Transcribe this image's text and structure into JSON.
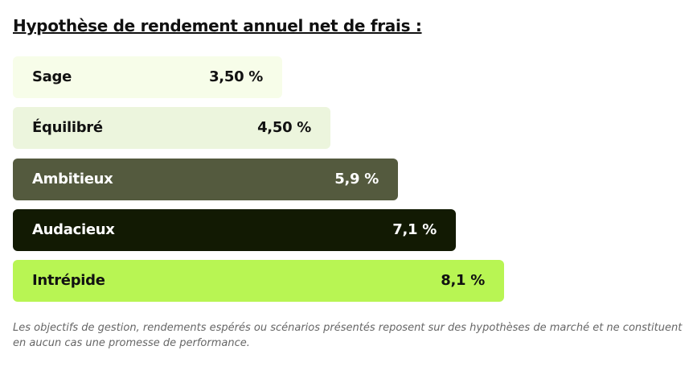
{
  "chart_data": {
    "type": "bar",
    "title": "Hypothèse de rendement annuel net de frais :",
    "categories": [
      "Sage",
      "Équilibré",
      "Ambitieux",
      "Audacieux",
      "Intrépide"
    ],
    "values": [
      3.5,
      4.5,
      5.9,
      7.1,
      8.1
    ],
    "value_labels": [
      "3,50 %",
      "4,50 %",
      "5,9 %",
      "7,1 %",
      "8,1 %"
    ],
    "colors": [
      "#f7fde9",
      "#ecf5dd",
      "#545a3e",
      "#121a03",
      "#b8f553"
    ],
    "note": "Les objectifs de gestion, rendements espérés ou scénarios présentés reposent sur des hypothèses de marché et ne constituent en aucun cas une promesse de performance."
  }
}
